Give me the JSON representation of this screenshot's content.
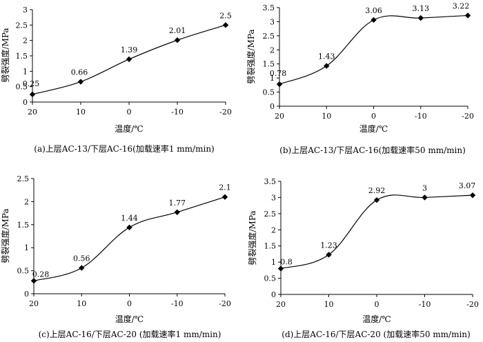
{
  "chart_data": [
    {
      "type": "line",
      "id": "a",
      "caption": "(a)上层AC-13/下层AC-16(加载速率1 mm/min)",
      "xlabel": "温度/℃",
      "ylabel": "劈裂强度/MPa",
      "categories": [
        "20",
        "10",
        "0",
        "-10",
        "-20"
      ],
      "values": [
        0.25,
        0.66,
        1.39,
        2.01,
        2.5
      ],
      "value_labels": [
        "0.25",
        "0.66",
        "1.39",
        "2.01",
        "2.5"
      ],
      "ylim": [
        0,
        3
      ],
      "yticks": [
        "0",
        "0.5",
        "1",
        "1.5",
        "2",
        "2.5",
        "3"
      ],
      "grid": false
    },
    {
      "type": "line",
      "id": "b",
      "caption": "(b)上层AC-13/下层AC-16(加载速率50 mm/min)",
      "xlabel": "温度/℃",
      "ylabel": "劈裂强度/MPa",
      "categories": [
        "20",
        "10",
        "0",
        "-10",
        "-20"
      ],
      "values": [
        0.78,
        1.43,
        3.06,
        3.13,
        3.22
      ],
      "value_labels": [
        "0.78",
        "1.43",
        "3.06",
        "3.13",
        "3.22"
      ],
      "ylim": [
        0,
        3.5
      ],
      "yticks": [
        "0",
        "0.5",
        "1",
        "1.5",
        "2",
        "2.5",
        "3",
        "3.5"
      ],
      "grid": false
    },
    {
      "type": "line",
      "id": "c",
      "caption": "(c)上层AC-16/下层AC-20 (加载速率1 mm/min)",
      "xlabel": "温度/℃",
      "ylabel": "劈裂强度/MPa",
      "categories": [
        "20",
        "10",
        "0",
        "-10",
        "-20"
      ],
      "values": [
        0.28,
        0.56,
        1.44,
        1.77,
        2.1
      ],
      "value_labels": [
        "0.28",
        "0.56",
        "1.44",
        "1.77",
        "2.1"
      ],
      "ylim": [
        0,
        2.5
      ],
      "yticks": [
        "0",
        "0.5",
        "1",
        "1.5",
        "2",
        "2.5"
      ],
      "grid": false
    },
    {
      "type": "line",
      "id": "d",
      "caption": "(d)上层AC-16/下层AC-20 (加载速率50 mm/min)",
      "xlabel": "温度/℃",
      "ylabel": "劈裂强度/MPa",
      "categories": [
        "20",
        "10",
        "0",
        "-10",
        "-20"
      ],
      "values": [
        0.8,
        1.23,
        2.92,
        3,
        3.07
      ],
      "value_labels": [
        "0.8",
        "1.23",
        "2.92",
        "3",
        "3.07"
      ],
      "ylim": [
        0,
        3.5
      ],
      "yticks": [
        "0",
        "0.5",
        "1",
        "1.5",
        "2",
        "2.5",
        "3",
        "3.5"
      ],
      "grid": false
    }
  ]
}
